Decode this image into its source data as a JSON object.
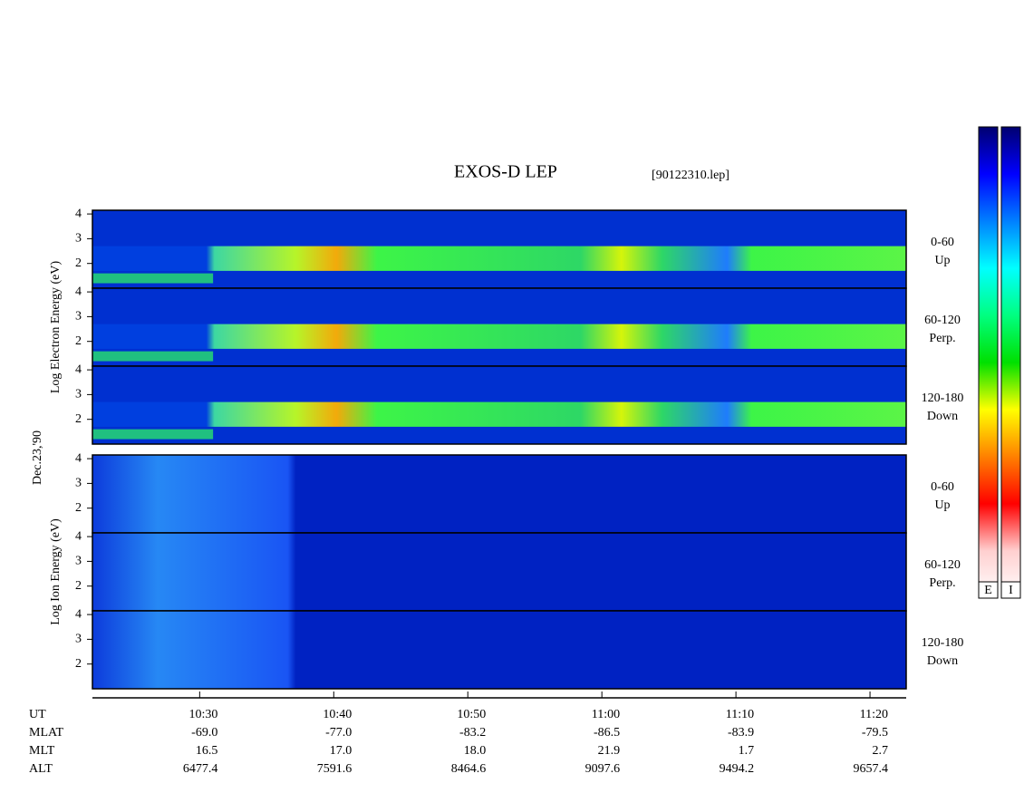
{
  "chart_data": {
    "type": "spectrogram",
    "title": "EXOS-D LEP",
    "file_label": "[90122310.lep]",
    "date_label": "Dec.23,'90",
    "ylim": [
      1,
      4.15
    ],
    "yticks": [
      2,
      3,
      4
    ],
    "xlim": [
      622,
      682.7
    ],
    "xticks": [
      {
        "value": 630,
        "label": "10:30"
      },
      {
        "value": 640,
        "label": "10:40"
      },
      {
        "value": 650,
        "label": "10:50"
      },
      {
        "value": 660,
        "label": "11:00"
      },
      {
        "value": 670,
        "label": "11:10"
      },
      {
        "value": 680,
        "label": "11:20"
      }
    ],
    "groups": [
      {
        "ylabel": "Log  Electron  Energy (eV)",
        "species": "electron",
        "panels": [
          {
            "label": "0-60",
            "sublabel": "Up"
          },
          {
            "label": "60-120",
            "sublabel": "Perp."
          },
          {
            "label": "120-180",
            "sublabel": "Down"
          }
        ]
      },
      {
        "ylabel": "Log  Ion  Energy (eV)",
        "species": "ion",
        "panels": [
          {
            "label": "0-60",
            "sublabel": "Up"
          },
          {
            "label": "60-120",
            "sublabel": "Perp."
          },
          {
            "label": "120-180",
            "sublabel": "Down"
          }
        ]
      }
    ],
    "orbit_table": {
      "row_names": [
        "UT",
        "MLAT",
        "MLT",
        "ALT"
      ],
      "rows": [
        [
          "-69.0",
          "-77.0",
          "-83.2",
          "-86.5",
          "-83.9",
          "-79.5"
        ],
        [
          "16.5",
          "17.0",
          "18.0",
          "21.9",
          "1.7",
          "2.7"
        ],
        [
          "6477.4",
          "7591.6",
          "8464.6",
          "9097.6",
          "9494.2",
          "9657.4"
        ]
      ]
    },
    "colorbars": [
      "E",
      "I"
    ],
    "colorbar_colors": [
      "#000070",
      "#0000ff",
      "#0080ff",
      "#00ffff",
      "#00ff80",
      "#00e000",
      "#ffff00",
      "#ff8000",
      "#ff0000",
      "#ffd0d0",
      "#ffffff"
    ]
  }
}
